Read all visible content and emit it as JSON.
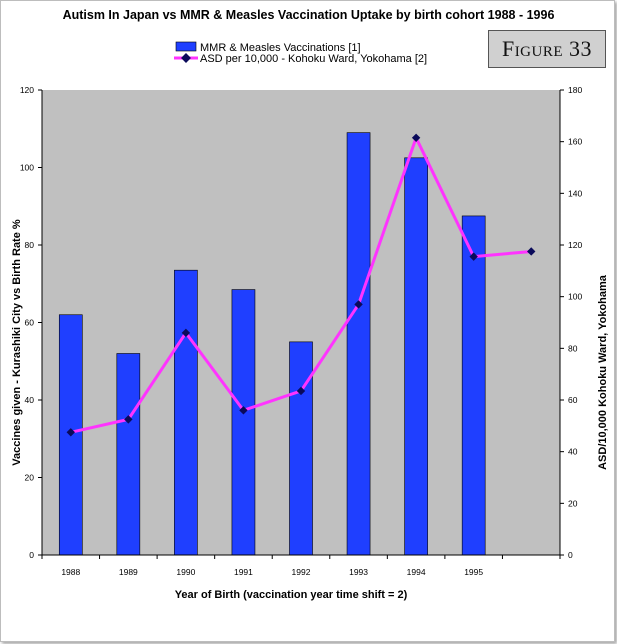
{
  "title": "Autism In Japan vs MMR & Measles Vaccination Uptake by birth cohort 1988 - 1996",
  "figure_label": "Figure 33",
  "chart_data": {
    "type": "bar",
    "categories": [
      "1988",
      "1989",
      "1990",
      "1991",
      "1992",
      "1993",
      "1994",
      "1995",
      ""
    ],
    "series": [
      {
        "name": "MMR & Measles Vaccinations [1]",
        "type": "bar",
        "axis": "left",
        "color": "#1f3fff",
        "values": [
          62,
          52,
          73.5,
          68.5,
          55,
          109,
          102.5,
          87.5,
          null
        ]
      },
      {
        "name": "ASD per 10,000 - Kohoku Ward, Yokohama [2]",
        "type": "line",
        "axis": "right",
        "color": "#ff33ff",
        "marker_color": "#0a0a5a",
        "values": [
          47.5,
          52.5,
          86,
          56,
          63.5,
          97,
          161.5,
          115.5,
          117.5
        ]
      }
    ],
    "xlabel": "Year of Birth (vaccination year time shift = 2)",
    "ylabel_left": "Vaccines given - Kurashiki City vs Birth Rate %",
    "ylabel_right": "ASD/10,000 Kohoku Ward, Yokohama",
    "ylim_left": [
      0,
      120
    ],
    "yticks_left": [
      0,
      20,
      40,
      60,
      80,
      100,
      120
    ],
    "ylim_right": [
      0,
      180
    ],
    "yticks_right": [
      0,
      20,
      40,
      60,
      80,
      100,
      120,
      140,
      160,
      180
    ],
    "grid": false,
    "plot_background": "#c0c0c0",
    "legend_position": "top-center"
  }
}
